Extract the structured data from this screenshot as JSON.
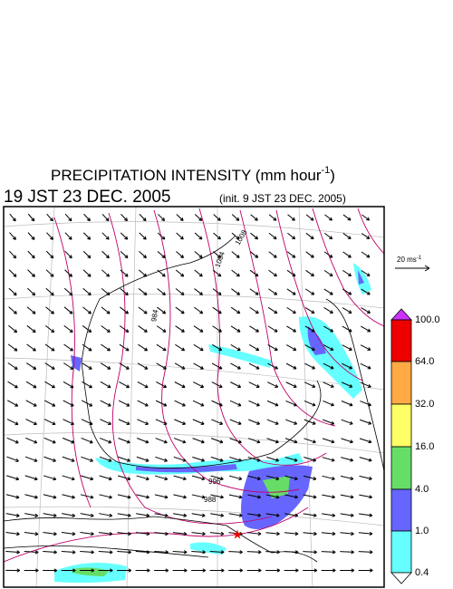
{
  "header": {
    "title_main": "PRECIPITATION INTENSITY (mm hour",
    "title_exponent": "-1",
    "title_end": ")",
    "valid_time": "19 JST 23 DEC. 2005",
    "init_time": "(init. 9 JST 23 DEC. 2005)"
  },
  "vector_reference": {
    "label": "20 ms",
    "exponent": "-1"
  },
  "colorbar": {
    "labels": [
      "100.0",
      "64.0",
      "32.0",
      "16.0",
      "4.0",
      "1.0",
      "0.4"
    ]
  },
  "contour_labels": [
    "996",
    "988",
    "984",
    "1004",
    "1008"
  ]
}
